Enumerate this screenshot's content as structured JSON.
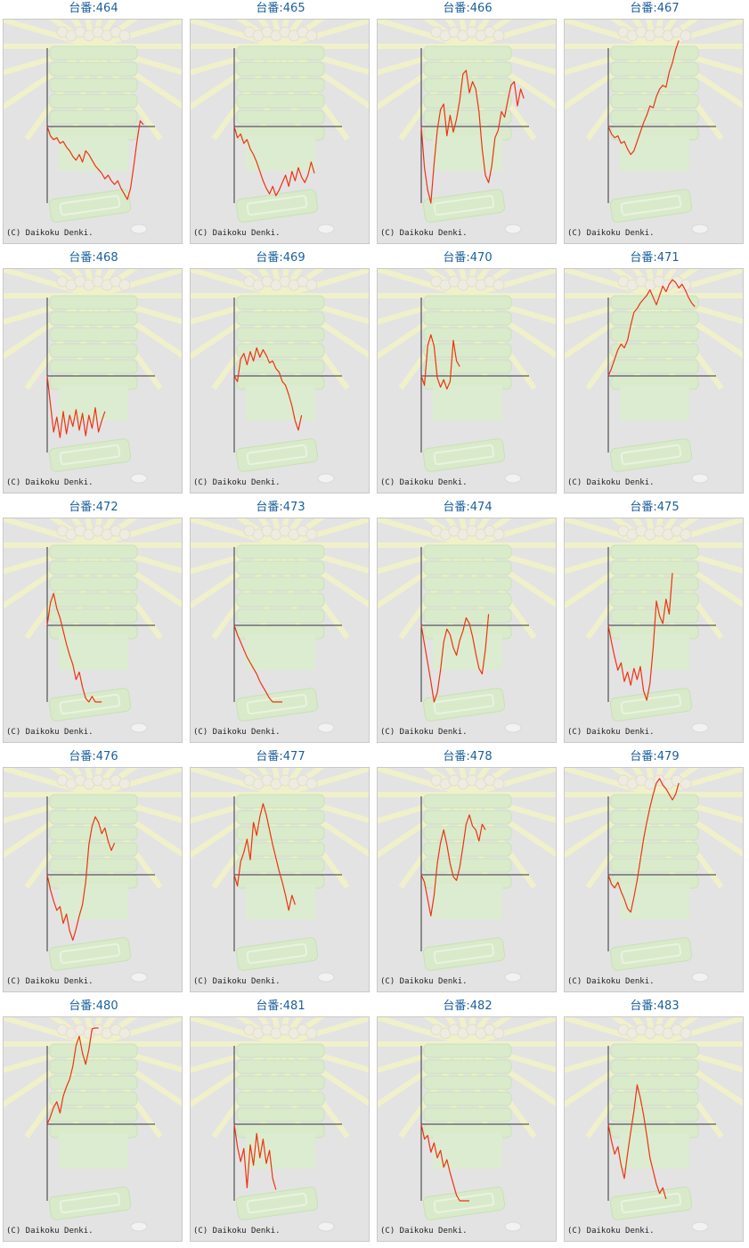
{
  "colors": {
    "title": "#1a5f9c",
    "line": "#ee3311",
    "axis": "#333333",
    "panel_bg": "#e3e3e3"
  },
  "copyright": "(C) Daikoku Denki.",
  "chart_data": [
    {
      "type": "line",
      "title": "台番:464",
      "values": [
        0,
        -0.5,
        -0.7,
        -0.6,
        -0.9,
        -0.8,
        -1.1,
        -1.3,
        -1.6,
        -1.8,
        -1.5,
        -1.9,
        -1.3,
        -1.5,
        -1.8,
        -2.1,
        -2.3,
        -2.5,
        -2.8,
        -2.6,
        -2.9,
        -3.1,
        -2.9,
        -3.3,
        -3.6,
        -3.9,
        -3.3,
        -2.1,
        -0.8,
        0.3,
        0.1
      ]
    },
    {
      "type": "line",
      "title": "台番:465",
      "values": [
        0,
        -0.6,
        -0.4,
        -0.9,
        -0.7,
        -1.2,
        -1.5,
        -1.9,
        -2.4,
        -2.9,
        -3.3,
        -3.6,
        -3.2,
        -3.7,
        -3.4,
        -3.0,
        -2.6,
        -3.2,
        -2.4,
        -2.9,
        -2.2,
        -2.7,
        -3.0,
        -2.6,
        -1.9,
        -2.5
      ]
    },
    {
      "type": "line",
      "title": "台番:466",
      "values": [
        0,
        -2.2,
        -3.4,
        -4.1,
        -2.0,
        -0.2,
        0.9,
        1.2,
        -0.5,
        0.6,
        -0.3,
        0.4,
        1.4,
        2.8,
        3.0,
        1.8,
        2.4,
        2.0,
        0.8,
        -1.2,
        -2.6,
        -3.0,
        -2.1,
        -0.6,
        -0.2,
        0.8,
        0.5,
        1.4,
        2.2,
        2.4,
        1.1,
        2.0,
        1.5
      ]
    },
    {
      "type": "line",
      "title": "台番:467",
      "values": [
        0,
        -0.4,
        -0.6,
        -0.5,
        -0.9,
        -0.8,
        -1.2,
        -1.5,
        -1.3,
        -0.8,
        -0.3,
        0.2,
        0.6,
        1.1,
        1.0,
        1.6,
        2.0,
        2.2,
        2.1,
        2.9,
        3.4,
        4.1,
        4.6
      ]
    },
    {
      "type": "line",
      "title": "台番:468",
      "values": [
        0,
        -1.5,
        -3.0,
        -2.2,
        -3.3,
        -1.9,
        -3.1,
        -2.1,
        -2.7,
        -1.8,
        -2.9,
        -2.0,
        -3.2,
        -2.1,
        -2.8,
        -1.7,
        -3.0,
        -2.4,
        -1.9
      ]
    },
    {
      "type": "line",
      "title": "台番:469",
      "values": [
        0,
        -0.3,
        0.9,
        1.2,
        0.6,
        1.3,
        0.8,
        1.5,
        1.0,
        1.4,
        1.1,
        0.7,
        0.8,
        0.4,
        0.2,
        -0.3,
        -0.5,
        -1.0,
        -1.6,
        -2.4,
        -2.9,
        -2.1
      ]
    },
    {
      "type": "line",
      "title": "台番:470",
      "values": [
        0,
        -0.5,
        1.6,
        2.2,
        1.6,
        -0.1,
        -0.6,
        -0.2,
        -0.7,
        -0.3,
        1.9,
        0.8,
        0.5
      ]
    },
    {
      "type": "line",
      "title": "台番:471",
      "values": [
        0,
        0.4,
        0.9,
        1.4,
        1.7,
        1.5,
        1.9,
        2.7,
        3.4,
        3.6,
        3.9,
        4.1,
        4.3,
        4.6,
        4.2,
        3.8,
        4.3,
        4.8,
        4.5,
        4.9,
        5.2,
        5.0,
        4.7,
        4.9,
        4.6,
        4.2,
        3.9,
        3.7
      ]
    },
    {
      "type": "line",
      "title": "台番:472",
      "values": [
        0,
        1.2,
        1.7,
        0.9,
        0.4,
        -0.3,
        -1.0,
        -1.6,
        -2.1,
        -2.9,
        -2.5,
        -3.3,
        -3.9,
        -4.2,
        -3.8,
        -4.5,
        -5.0,
        -4.6
      ]
    },
    {
      "type": "line",
      "title": "台番:473",
      "values": [
        0,
        -0.5,
        -0.9,
        -1.3,
        -1.7,
        -2.0,
        -2.3,
        -2.6,
        -3.0,
        -3.3,
        -3.6,
        -3.9,
        -4.1,
        -4.4,
        -4.8,
        -4.5
      ]
    },
    {
      "type": "line",
      "title": "台番:474",
      "values": [
        0,
        -1.0,
        -2.0,
        -3.0,
        -4.1,
        -3.6,
        -2.4,
        -0.9,
        -0.2,
        -0.5,
        -1.2,
        -1.6,
        -0.8,
        -0.3,
        0.4,
        0.1,
        -0.6,
        -1.5,
        -2.3,
        -2.6,
        -1.3,
        0.6
      ]
    },
    {
      "type": "line",
      "title": "台番:475",
      "values": [
        0,
        -0.9,
        -1.7,
        -2.4,
        -2.0,
        -3.0,
        -2.5,
        -3.2,
        -2.3,
        -2.9,
        -2.2,
        -3.5,
        -4.0,
        -3.1,
        -1.2,
        1.3,
        0.5,
        0.1,
        1.4,
        0.6,
        2.8
      ]
    },
    {
      "type": "line",
      "title": "台番:476",
      "values": [
        0,
        -0.8,
        -1.4,
        -1.9,
        -1.7,
        -2.6,
        -2.1,
        -3.0,
        -3.5,
        -2.9,
        -2.2,
        -1.6,
        -0.4,
        1.6,
        2.6,
        3.1,
        2.8,
        2.2,
        2.5,
        1.8,
        1.3,
        1.7
      ]
    },
    {
      "type": "line",
      "title": "台番:477",
      "values": [
        0,
        -0.6,
        0.7,
        1.2,
        1.9,
        0.8,
        2.8,
        2.1,
        3.1,
        3.8,
        3.2,
        2.4,
        1.6,
        0.9,
        0.2,
        -0.4,
        -1.1,
        -1.9,
        -1.1,
        -1.6
      ]
    },
    {
      "type": "line",
      "title": "台番:478",
      "values": [
        0,
        -0.4,
        -1.3,
        -2.2,
        -1.1,
        0.6,
        1.7,
        2.4,
        1.6,
        0.6,
        -0.1,
        -0.3,
        0.4,
        1.5,
        2.7,
        3.2,
        2.6,
        2.4,
        1.8,
        2.7,
        2.4
      ]
    },
    {
      "type": "line",
      "title": "台番:479",
      "values": [
        0,
        -0.5,
        -0.7,
        -0.4,
        -0.9,
        -1.3,
        -1.8,
        -2.0,
        -1.2,
        -0.3,
        0.8,
        1.9,
        2.8,
        3.6,
        4.3,
        4.9,
        5.2,
        4.8,
        4.6,
        4.3,
        4.0,
        4.3,
        4.9
      ]
    },
    {
      "type": "line",
      "title": "台番:480",
      "values": [
        0,
        0.4,
        0.9,
        1.2,
        0.6,
        1.5,
        2.0,
        2.4,
        3.1,
        4.2,
        4.7,
        3.8,
        3.2,
        4.0,
        5.1,
        6.5,
        8.0
      ]
    },
    {
      "type": "line",
      "title": "台番:481",
      "values": [
        0,
        -1.2,
        -2.0,
        -1.3,
        -3.4,
        -1.1,
        -2.2,
        -0.5,
        -1.8,
        -0.8,
        -2.1,
        -1.4,
        -2.9,
        -3.5
      ]
    },
    {
      "type": "line",
      "title": "台番:482",
      "values": [
        0,
        -0.8,
        -0.6,
        -1.5,
        -1.0,
        -1.8,
        -1.4,
        -2.3,
        -1.9,
        -2.6,
        -3.2,
        -3.8,
        -4.1,
        -4.6,
        -5.0,
        -4.6
      ]
    },
    {
      "type": "line",
      "title": "台番:483",
      "values": [
        0,
        -0.9,
        -1.6,
        -1.2,
        -2.2,
        -2.9,
        -1.6,
        -0.4,
        0.7,
        2.1,
        1.4,
        0.5,
        -0.6,
        -1.8,
        -2.5,
        -3.2,
        -3.7,
        -3.4,
        -4.0
      ]
    }
  ]
}
